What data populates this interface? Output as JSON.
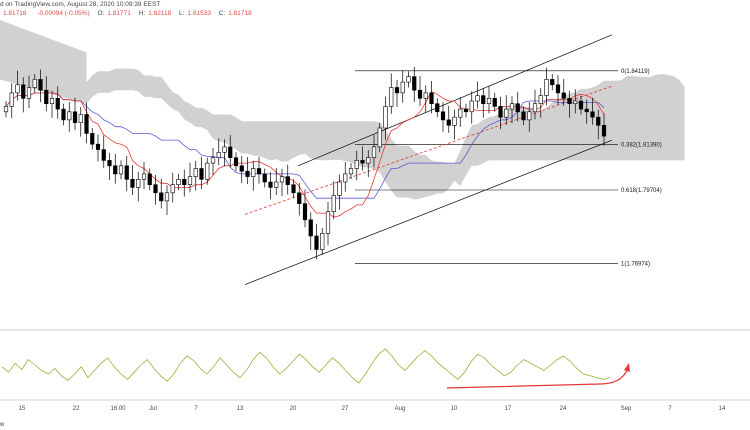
{
  "header": {
    "source": "d on TradingView.com, August 28, 2020 10:09:39 EEST",
    "ohlc": [
      {
        "key": "",
        "value": "1.81718"
      },
      {
        "key": "",
        "value": "-0.00094 (-0.05%)"
      },
      {
        "key": "O:",
        "value": "1.81771"
      },
      {
        "key": "H:",
        "value": "1.82118"
      },
      {
        "key": "L:",
        "value": "1.81533"
      },
      {
        "key": "C:",
        "value": "1.81718"
      }
    ]
  },
  "watermark": "w",
  "colors": {
    "bull": "#ffffff",
    "bear": "#000000",
    "cloud": "#c9c9c9",
    "tenkan": "#e53935",
    "kijun": "#5b5bd6",
    "channel": "#000000",
    "midline": "#e53935",
    "oscillator": "#9fae37",
    "arrow": "#e53935",
    "axis_text": "#434651",
    "grid": "#e0e3eb"
  },
  "chart_data": {
    "type": "candlestick",
    "x_ticks": [
      "15",
      "22",
      "16:00",
      "Jul",
      "7",
      "13",
      "20",
      "27",
      "Aug",
      "10",
      "17",
      "24",
      "Sep",
      "7",
      "14"
    ],
    "fib_levels": [
      {
        "ratio": 0,
        "label": "0(1.84119)",
        "price": 1.84119
      },
      {
        "ratio": 0.382,
        "label": "0.382(1.81390)",
        "price": 1.8139
      },
      {
        "ratio": 0.618,
        "label": "0.618(1.79704)",
        "price": 1.79704
      },
      {
        "ratio": 1,
        "label": "1(1.76974)",
        "price": 1.76974
      }
    ],
    "price_range": [
      1.76,
      1.86
    ],
    "closes": [
      1.828,
      1.833,
      1.836,
      1.831,
      1.835,
      1.838,
      1.834,
      1.829,
      1.831,
      1.827,
      1.823,
      1.826,
      1.822,
      1.825,
      1.818,
      1.814,
      1.812,
      1.808,
      1.806,
      1.803,
      1.806,
      1.801,
      1.798,
      1.801,
      1.803,
      1.799,
      1.796,
      1.793,
      1.796,
      1.799,
      1.801,
      1.799,
      1.802,
      1.805,
      1.801,
      1.807,
      1.809,
      1.811,
      1.813,
      1.809,
      1.806,
      1.804,
      1.802,
      1.805,
      1.803,
      1.8,
      1.798,
      1.8,
      1.802,
      1.799,
      1.796,
      1.792,
      1.786,
      1.78,
      1.775,
      1.781,
      1.789,
      1.795,
      1.8,
      1.803,
      1.805,
      1.808,
      1.807,
      1.809,
      1.813,
      1.82,
      1.828,
      1.835,
      1.833,
      1.837,
      1.839,
      1.834,
      1.831,
      1.833,
      1.829,
      1.826,
      1.823,
      1.821,
      1.824,
      1.827,
      1.826,
      1.83,
      1.832,
      1.829,
      1.831,
      1.828,
      1.824,
      1.827,
      1.829,
      1.826,
      1.823,
      1.826,
      1.829,
      1.832,
      1.838,
      1.836,
      1.833,
      1.831,
      1.829,
      1.83,
      1.827,
      1.826,
      1.824,
      1.821,
      1.817
    ],
    "oscillator_series": [
      48,
      42,
      52,
      45,
      56,
      50,
      44,
      40,
      46,
      38,
      33,
      40,
      48,
      36,
      44,
      52,
      58,
      48,
      40,
      34,
      42,
      50,
      56,
      46,
      38,
      32,
      40,
      52,
      60,
      55,
      46,
      40,
      48,
      58,
      50,
      42,
      36,
      44,
      56,
      64,
      58,
      48,
      40,
      46,
      54,
      62,
      56,
      48,
      42,
      50,
      58,
      52,
      44,
      36,
      30,
      40,
      52,
      62,
      68,
      60,
      50,
      44,
      52,
      60,
      66,
      60,
      52,
      46,
      40,
      34,
      42,
      54,
      62,
      58,
      50,
      44,
      38,
      42,
      50,
      56,
      52,
      48,
      44,
      50,
      56,
      60,
      54,
      46,
      40,
      38,
      36,
      34,
      36
    ]
  }
}
